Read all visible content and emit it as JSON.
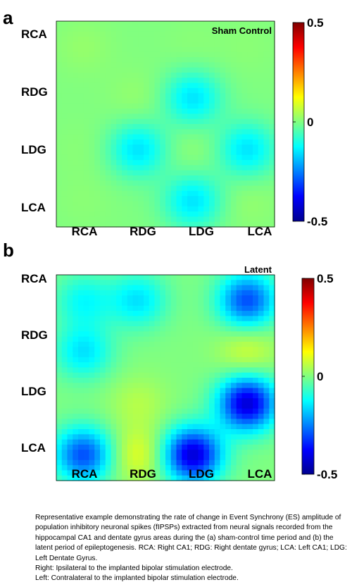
{
  "chart_data": [
    {
      "type": "heatmap",
      "panel_label": "a",
      "title": "Sham Control",
      "x_categories": [
        "RCA",
        "RDG",
        "LDG",
        "LCA"
      ],
      "y_categories": [
        "RCA",
        "RDG",
        "LDG",
        "LCA"
      ],
      "colorbar": {
        "min": -0.5,
        "max": 0.5,
        "ticks": [
          "0.5",
          "0",
          "-0.5"
        ]
      },
      "values": [
        [
          0.02,
          0.0,
          0.01,
          0.01
        ],
        [
          0.0,
          0.02,
          -0.15,
          0.0
        ],
        [
          0.01,
          -0.15,
          0.02,
          -0.15
        ],
        [
          0.01,
          0.0,
          -0.15,
          0.02
        ]
      ]
    },
    {
      "type": "heatmap",
      "panel_label": "b",
      "title": "Latent",
      "x_categories": [
        "RCA",
        "RDG",
        "LDG",
        "LCA"
      ],
      "y_categories": [
        "RCA",
        "RDG",
        "LDG",
        "LCA"
      ],
      "colorbar": {
        "min": -0.5,
        "max": 0.5,
        "ticks": [
          "0.5",
          "0",
          "-0.5"
        ]
      },
      "values": [
        [
          -0.12,
          -0.15,
          0.0,
          -0.3
        ],
        [
          -0.15,
          0.0,
          0.0,
          0.08
        ],
        [
          0.0,
          0.05,
          0.0,
          -0.42
        ],
        [
          -0.3,
          0.1,
          -0.42,
          0.0
        ]
      ]
    }
  ],
  "caption": [
    "Representative example demonstrating the rate of change in Event Synchrony (ES) amplitude of population inhibitory neuronal spikes (fIPSPs) extracted from neural signals recorded from the hippocampal CA1 and dentate gyrus areas during the (a) sham-control time period and (b) the latent period of epileptogenesis. RCA: Right CA1; RDG: Right dentate gyrus; LCA: Left CA1; LDG: Left Dentate Gyrus.",
    "Right: Ipsilateral to the implanted bipolar stimulation electrode.",
    "Left: Contralateral to the implanted bipolar stimulation electrode."
  ],
  "colors": {
    "background_zero": "#8fe4a4",
    "jet": [
      "#00008f",
      "#0000ff",
      "#0080ff",
      "#00ffff",
      "#80ff80",
      "#ffff00",
      "#ff8000",
      "#ff0000",
      "#800000"
    ]
  }
}
